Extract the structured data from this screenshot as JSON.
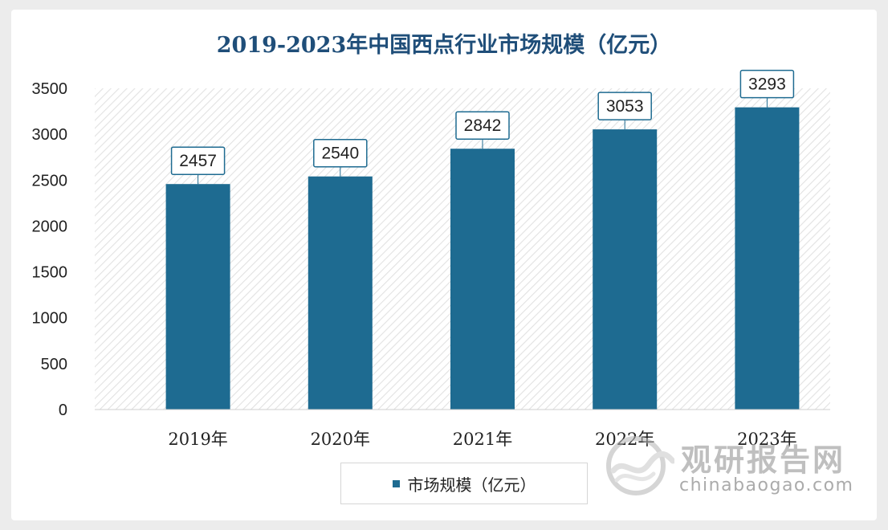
{
  "chart_data": {
    "type": "bar",
    "title": "2019-2023年中国西点行业市场规模（亿元）",
    "categories": [
      "2019年",
      "2020年",
      "2021年",
      "2022年",
      "2023年"
    ],
    "series": [
      {
        "name": "市场规模（亿元）",
        "values": [
          2457,
          2540,
          2842,
          3053,
          3293
        ]
      }
    ],
    "data_labels": [
      "2457",
      "2540",
      "2842",
      "3053",
      "3293"
    ],
    "y_ticks": [
      "0",
      "500",
      "1000",
      "1500",
      "2000",
      "2500",
      "3000",
      "3500"
    ],
    "ylim": [
      0,
      3500
    ],
    "grid": false,
    "plot_background": "diagonal-hatch",
    "legend": "bottom-center"
  },
  "colors": {
    "bar": "#1e6b91",
    "title": "#1f4e79",
    "hatch": "#e4e4e4"
  },
  "watermark": {
    "cn": "观研报告网",
    "en": "chinabaogao.com",
    "icon": "wave-circle-logo"
  }
}
